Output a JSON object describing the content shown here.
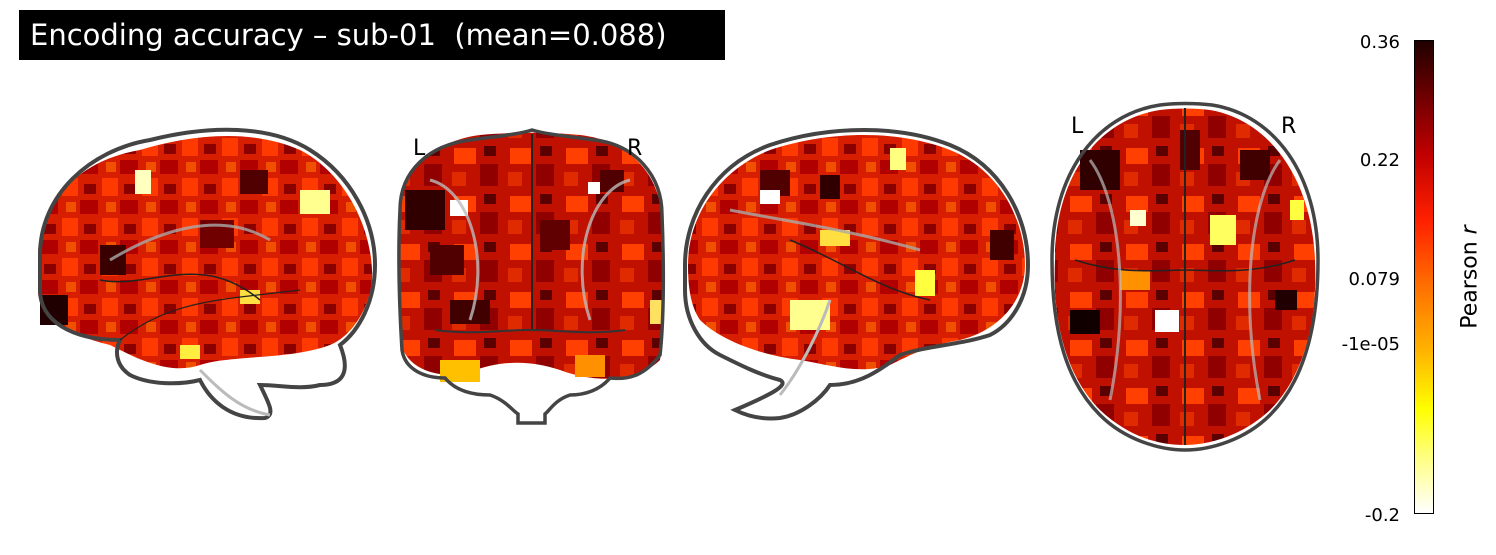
{
  "title": "Encoding accuracy – sub-01  (mean=0.088)",
  "hemisphere_labels": {
    "coronal_left": "L",
    "coronal_right": "R",
    "axial_left": "L",
    "axial_right": "R"
  },
  "views": [
    "sagittal-left",
    "coronal",
    "sagittal-right",
    "axial"
  ],
  "colormap": {
    "name": "cold_hot-like (hot)",
    "colors": [
      "#ffffff",
      "#ffff00",
      "#ff8000",
      "#ff0000",
      "#800000",
      "#200000"
    ]
  },
  "colorbar": {
    "label_main": "Pearson ",
    "label_italic": "r",
    "ticks": [
      "0.36",
      "0.22",
      "0.079",
      "-1e-05",
      "-0.2"
    ]
  }
}
